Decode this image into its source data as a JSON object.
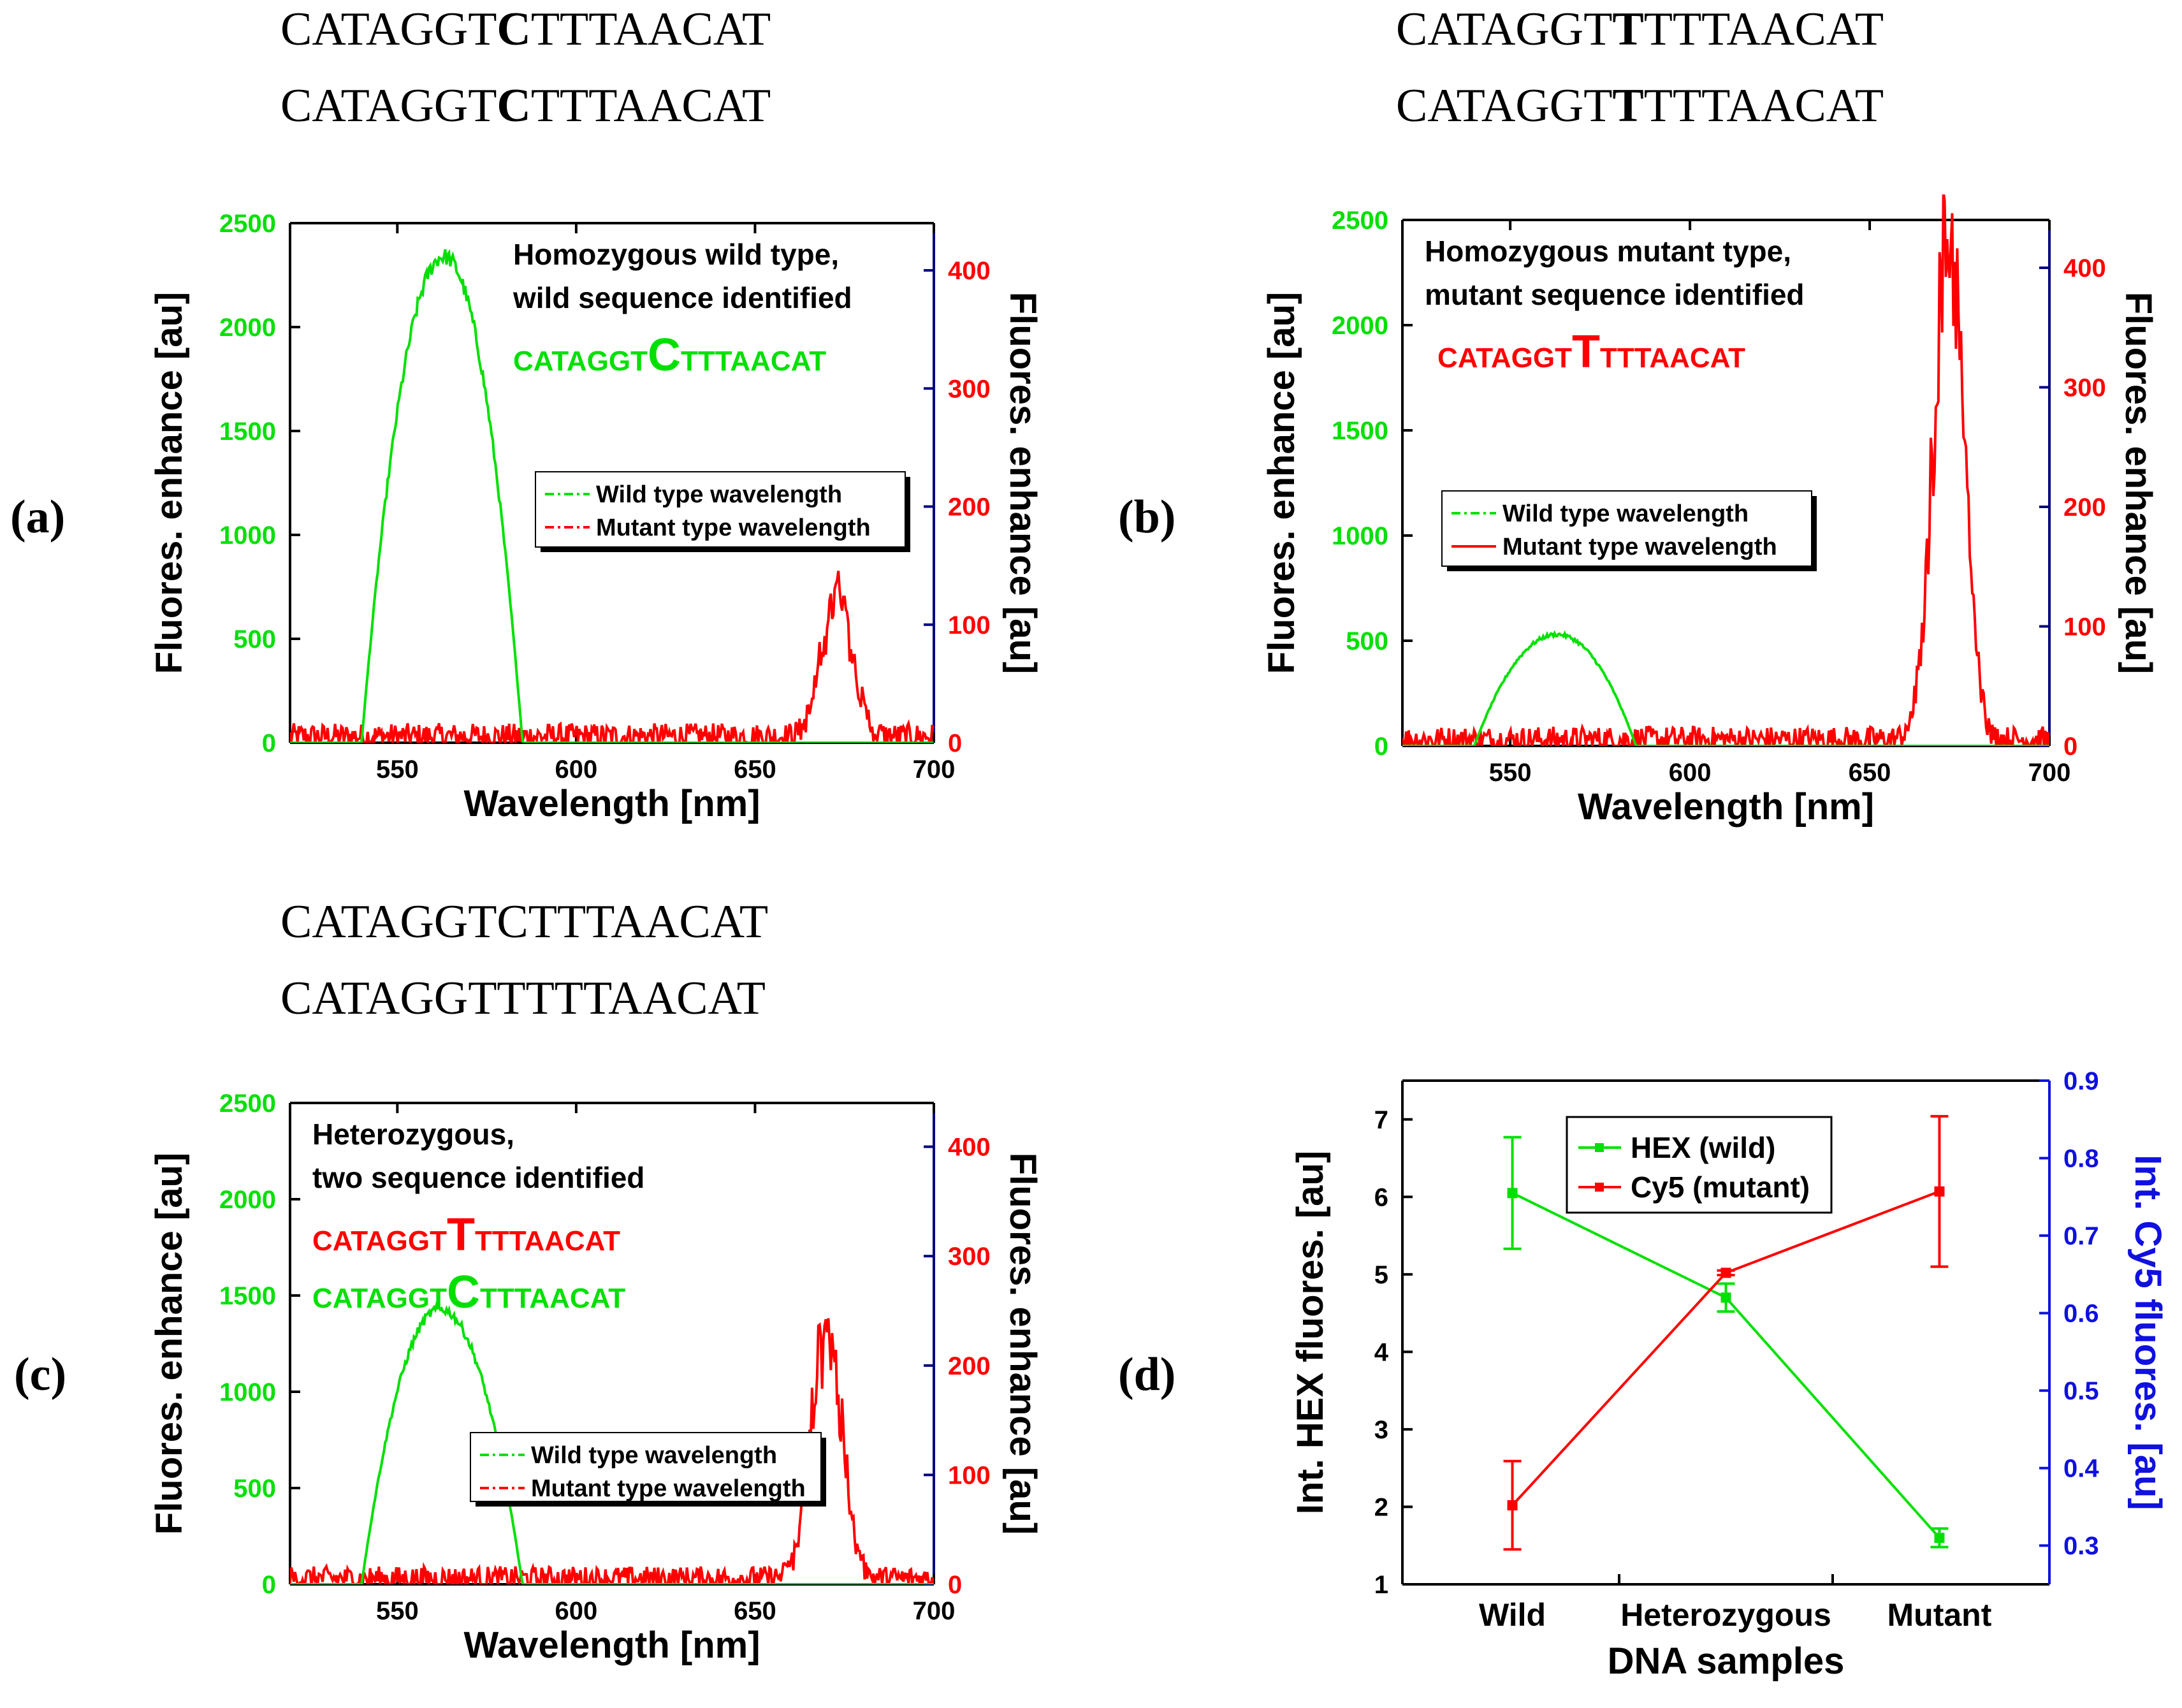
{
  "colors": {
    "wild": "#00e000",
    "mutant": "#ff0000",
    "blue": "#1010e0",
    "axis": "#000000",
    "navy": "#000080"
  },
  "sequences": {
    "a": {
      "line1": {
        "pre": "CATAGGT",
        "bold": "C",
        "post": "TTTAACAT"
      },
      "line2": {
        "pre": "CATAGGT",
        "bold": "C",
        "post": "TTTAACAT"
      }
    },
    "b": {
      "line1": {
        "pre": "CATAGGT",
        "bold": "T",
        "post": "TTTAACAT"
      },
      "line2": {
        "pre": "CATAGGT",
        "bold": "T",
        "post": "TTTAACAT"
      }
    },
    "c": {
      "line1": "CATAGGTCTTTAACAT",
      "line2": "CATAGGTTTTTAACAT"
    }
  },
  "chart_data": [
    {
      "id": "a",
      "panel_label": "(a)",
      "type": "line",
      "title_lines": [
        "Homozygous wild type,",
        "wild sequence identified"
      ],
      "id_seqs": [
        {
          "pre": "CATAGGT",
          "big": "C",
          "post": "TTTAACAT",
          "color": "#00e000"
        }
      ],
      "xlabel": "Wavelength [nm]",
      "ylabel_left": "Fluores. enhance [au]",
      "ylabel_right": "Fluores. enhance [au]",
      "xlim": [
        520,
        700
      ],
      "xticks": [
        "550",
        "600",
        "650",
        "700"
      ],
      "ylim_left": [
        0,
        2500
      ],
      "yticks_left": [
        "0",
        "500",
        "1000",
        "1500",
        "2000",
        "2500"
      ],
      "ylim_right": [
        0,
        440
      ],
      "yticks_right": [
        "0",
        "100",
        "200",
        "300",
        "400"
      ],
      "legend": [
        "Wild type wavelength",
        "Mutant type wavelength"
      ],
      "legend_dash": [
        true,
        true
      ],
      "series": [
        {
          "name": "Wild type wavelength",
          "axis": "left",
          "peak_center": 563,
          "peak_height": 2340,
          "range": [
            540,
            585
          ]
        },
        {
          "name": "Mutant type wavelength",
          "axis": "right",
          "peak_center": 673,
          "peak_height": 120,
          "baseline": 10
        }
      ]
    },
    {
      "id": "b",
      "panel_label": "(b)",
      "type": "line",
      "title_lines": [
        "Homozygous mutant type,",
        "mutant sequence identified"
      ],
      "id_seqs": [
        {
          "pre": "CATAGGT",
          "big": "T",
          "post": "TTTAACAT",
          "color": "#ff0000"
        }
      ],
      "xlabel": "Wavelength [nm]",
      "ylabel_left": "Fluores. enhance [au]",
      "ylabel_right": "Fluores. enhance [au]",
      "xlim": [
        520,
        700
      ],
      "xticks": [
        "550",
        "600",
        "650",
        "700"
      ],
      "ylim_left": [
        0,
        2500
      ],
      "yticks_left": [
        "0",
        "500",
        "1000",
        "1500",
        "2000",
        "2500"
      ],
      "ylim_right": [
        0,
        440
      ],
      "yticks_right": [
        "0",
        "100",
        "200",
        "300",
        "400"
      ],
      "legend": [
        "Wild type wavelength",
        "Mutant type wavelength"
      ],
      "legend_dash": [
        true,
        false
      ],
      "series": [
        {
          "name": "Wild type wavelength",
          "axis": "left",
          "peak_center": 563,
          "peak_height": 530,
          "range": [
            540,
            585
          ]
        },
        {
          "name": "Mutant type wavelength",
          "axis": "right",
          "peak_center": 672,
          "peak_height": 425,
          "baseline": 10
        }
      ]
    },
    {
      "id": "c",
      "panel_label": "(c)",
      "type": "line",
      "title_lines": [
        "Heterozygous,",
        "two sequence identified"
      ],
      "id_seqs": [
        {
          "pre": "CATAGGT",
          "big": "T",
          "post": "TTTAACAT",
          "color": "#ff0000"
        },
        {
          "pre": "CATAGGT",
          "big": "C",
          "post": "TTTAACAT",
          "color": "#00e000"
        }
      ],
      "xlabel": "Wavelength [nm]",
      "ylabel_left": "Fluores. enhance [au]",
      "ylabel_right": "Fluores. enhance [au]",
      "xlim": [
        520,
        700
      ],
      "xticks": [
        "550",
        "600",
        "650",
        "700"
      ],
      "ylim_left": [
        0,
        2500
      ],
      "yticks_left": [
        "0",
        "500",
        "1000",
        "1500",
        "2000",
        "2500"
      ],
      "ylim_right": [
        0,
        440
      ],
      "yticks_right": [
        "0",
        "100",
        "200",
        "300",
        "400"
      ],
      "legend": [
        "Wild type wavelength",
        "Mutant type wavelength"
      ],
      "legend_dash": [
        true,
        true
      ],
      "series": [
        {
          "name": "Wild type wavelength",
          "axis": "left",
          "peak_center": 562,
          "peak_height": 1430,
          "range": [
            540,
            585
          ]
        },
        {
          "name": "Mutant type wavelength",
          "axis": "right",
          "peak_center": 670,
          "peak_height": 230,
          "baseline": 10
        }
      ]
    },
    {
      "id": "d",
      "panel_label": "(d)",
      "type": "line",
      "categories": [
        "Wild",
        "Heterozygous",
        "Mutant"
      ],
      "xlabel": "DNA samples",
      "ylabel_left": "Int. HEX fluores. [au]",
      "ylabel_right": "Int. Cy5 fluores. [au]",
      "ylim_left": [
        1,
        7.5
      ],
      "yticks_left": [
        "1",
        "2",
        "3",
        "4",
        "5",
        "6",
        "7"
      ],
      "ylim_right": [
        0.25,
        0.9
      ],
      "yticks_right": [
        "0.3",
        "0.4",
        "0.5",
        "0.6",
        "0.7",
        "0.8",
        "0.9"
      ],
      "legend": [
        "HEX (wild)",
        "Cy5 (mutant)"
      ],
      "series": [
        {
          "name": "HEX (wild)",
          "axis": "left",
          "values": [
            6.05,
            4.7,
            1.6
          ],
          "errors": [
            0.72,
            0.18,
            0.12
          ]
        },
        {
          "name": "Cy5 (mutant)",
          "axis": "right",
          "values": [
            0.352,
            0.652,
            0.757
          ],
          "errors": [
            0.057,
            0.003,
            0.097
          ]
        }
      ]
    }
  ]
}
